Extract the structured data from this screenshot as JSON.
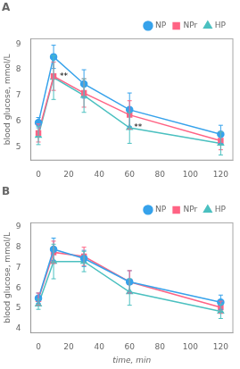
{
  "chart_data": [
    {
      "type": "line",
      "title": "A",
      "x": [
        0,
        10,
        30,
        60,
        120
      ],
      "xlim": [
        -5,
        128
      ],
      "xticks": [
        0,
        20,
        40,
        60,
        80,
        100,
        120
      ],
      "ylim": [
        4.5,
        9.2
      ],
      "yticks": [
        5,
        6,
        7,
        8,
        9
      ],
      "ylabel": "blood glucose, mmol/L",
      "grid": false,
      "legend": "upper right",
      "series": [
        {
          "name": "NP",
          "marker": "circle",
          "values": [
            5.95,
            8.5,
            7.45,
            6.45,
            5.5
          ],
          "err": [
            0.2,
            0.45,
            0.55,
            0.65,
            0.35
          ]
        },
        {
          "name": "NPr",
          "marker": "square",
          "values": [
            5.55,
            7.75,
            7.1,
            6.25,
            5.25
          ],
          "err": [
            0.35,
            0.55,
            0.55,
            0.55,
            0.35
          ]
        },
        {
          "name": "HP",
          "marker": "triangle",
          "values": [
            5.45,
            7.7,
            7.0,
            5.75,
            5.15
          ],
          "err": [
            0.35,
            0.85,
            0.65,
            0.6,
            0.45
          ]
        }
      ],
      "annotations": [
        {
          "x": 14,
          "y": 7.75,
          "text": "**"
        },
        {
          "x": 63,
          "y": 5.75,
          "text": "**"
        }
      ]
    },
    {
      "type": "line",
      "title": "B",
      "x": [
        0,
        10,
        30,
        60,
        120
      ],
      "xlim": [
        -5,
        128
      ],
      "xticks": [
        0,
        20,
        40,
        60,
        80,
        100,
        120
      ],
      "ylim": [
        3.8,
        9.2
      ],
      "yticks": [
        4,
        5,
        6,
        7,
        8,
        9
      ],
      "xlabel": "time, min",
      "ylabel": "blood glucose, mmol/L",
      "grid": false,
      "legend": "upper right",
      "series": [
        {
          "name": "NP",
          "marker": "circle",
          "values": [
            5.5,
            7.9,
            7.45,
            6.3,
            5.3
          ],
          "err": [
            0.25,
            0.55,
            0.4,
            0.55,
            0.35
          ]
        },
        {
          "name": "NPr",
          "marker": "square",
          "values": [
            5.45,
            7.75,
            7.55,
            6.3,
            5.05
          ],
          "err": [
            0.3,
            0.55,
            0.45,
            0.55,
            0.3
          ]
        },
        {
          "name": "HP",
          "marker": "triangle",
          "values": [
            5.2,
            7.3,
            7.3,
            5.8,
            4.85
          ],
          "err": [
            0.25,
            0.85,
            0.5,
            0.65,
            0.35
          ]
        }
      ]
    }
  ]
}
